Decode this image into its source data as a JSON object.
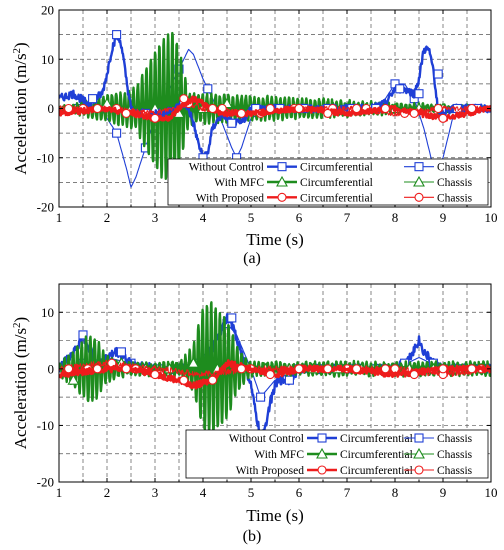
{
  "chart_data": [
    {
      "type": "line",
      "panel_label": "(a)",
      "xlabel": "Time (s)",
      "ylabel": "Acceleration (m/s",
      "ylabel_sup": "2",
      "ylabel_end": ")",
      "xlim": [
        1,
        10
      ],
      "ylim": [
        -20,
        20
      ],
      "x_ticks": [
        1,
        2,
        3,
        4,
        5,
        6,
        7,
        8,
        9,
        10
      ],
      "y_ticks": [
        -20,
        -10,
        0,
        10,
        20
      ],
      "grid": true,
      "legend_position": "bottom-right",
      "legend_rows": [
        {
          "group": "Without Control",
          "circ": "Circumferential",
          "chassis": "Chassis",
          "color": "#1f3fd6"
        },
        {
          "group": "With MFC",
          "circ": "Circumferential",
          "chassis": "Chassis",
          "color": "#1e8c1e"
        },
        {
          "group": "With Proposed",
          "circ": "Circumferential",
          "chassis": "Chassis",
          "color": "#ee1c1c"
        }
      ],
      "series": [
        {
          "legend_group": "Without Control",
          "legend_kind": "Circumferential",
          "color": "#1f3fd6",
          "marker": "square",
          "width": 2.4,
          "style": "noisy",
          "x": [
            1.0,
            1.3,
            1.6,
            1.9,
            2.0,
            2.1,
            2.2,
            2.3,
            2.4,
            2.5,
            2.6,
            2.8,
            3.0,
            3.2,
            3.4,
            3.6,
            3.7,
            3.8,
            3.9,
            4.0,
            4.1,
            4.2,
            4.4,
            4.6,
            4.8,
            5.0,
            5.5,
            6.0,
            6.5,
            7.0,
            7.5,
            7.8,
            8.0,
            8.2,
            8.4,
            8.5,
            8.6,
            8.7,
            8.8,
            8.9,
            9.0,
            9.2,
            9.5,
            9.8,
            10.0
          ],
          "y": [
            2,
            3,
            1,
            3,
            7,
            12,
            15,
            13,
            6,
            0,
            -1,
            -1,
            -1,
            -1,
            0,
            1,
            0,
            -3,
            -7,
            -10,
            -9,
            -4,
            -1,
            -3,
            -3,
            0,
            0,
            0,
            0,
            0,
            0,
            1,
            4,
            4,
            3,
            6,
            12,
            12,
            8,
            -1,
            -1,
            0,
            0,
            0,
            0
          ],
          "markers_x": [
            1.7,
            2.2,
            2.8,
            3.6,
            4.0,
            4.6,
            5.1,
            5.6,
            6.1,
            6.6,
            7.1,
            7.6,
            8.1,
            8.5,
            8.9,
            9.3,
            9.7
          ],
          "markers_y": [
            2,
            15,
            -1,
            1,
            -10,
            -3,
            0,
            0,
            0,
            0,
            0,
            0,
            4,
            3,
            7,
            0,
            0
          ]
        },
        {
          "legend_group": "Without Control",
          "legend_kind": "Chassis",
          "color": "#1f3fd6",
          "marker": "square",
          "width": 1.1,
          "style": "smooth",
          "x": [
            1.0,
            1.4,
            1.8,
            2.0,
            2.2,
            2.4,
            2.5,
            2.6,
            2.8,
            3.0,
            3.2,
            3.4,
            3.6,
            3.7,
            3.8,
            4.0,
            4.2,
            4.4,
            4.6,
            4.7,
            4.8,
            5.0,
            5.4,
            6.0,
            6.5,
            7.0,
            7.5,
            7.8,
            8.0,
            8.2,
            8.4,
            8.6,
            8.8,
            8.9,
            9.0,
            9.2,
            9.5,
            10.0
          ],
          "y": [
            0,
            0,
            1,
            -2,
            -5,
            -12,
            -16,
            -14,
            -8,
            -2,
            2,
            6,
            10,
            12,
            11,
            6,
            2,
            -3,
            -8,
            -10,
            -8,
            -2,
            0,
            0,
            0,
            0,
            0,
            2,
            5,
            5,
            2,
            -4,
            -12,
            -14,
            -10,
            -2,
            0,
            0
          ],
          "markers_x": [
            1.4,
            2.2,
            2.8,
            3.5,
            4.1,
            4.7,
            5.4,
            8.0,
            8.4,
            8.8,
            9.6
          ],
          "markers_y": [
            0,
            -5,
            -8,
            8,
            4,
            -10,
            0,
            5,
            2,
            -12,
            0
          ]
        },
        {
          "legend_group": "With MFC",
          "legend_kind": "Circumferential",
          "color": "#1e8c1e",
          "marker": "triangle",
          "width": 2.4,
          "style": "oscillation",
          "x": [
            1.0,
            2.6,
            2.9,
            3.15,
            3.35,
            3.5,
            3.7,
            10.0
          ],
          "y": [
            0,
            4,
            10,
            14,
            16,
            12,
            3,
            0
          ],
          "period": 0.09
        },
        {
          "legend_group": "With MFC",
          "legend_kind": "Chassis",
          "color": "#1e8c1e",
          "marker": "triangle",
          "width": 1.1,
          "style": "noisy-small",
          "x": [
            1.0,
            3.0,
            3.5,
            4.0,
            10.0
          ],
          "y": [
            0,
            0,
            -1,
            0,
            0
          ],
          "markers_x": [
            1.5,
            2.0,
            2.5,
            3.0,
            3.5,
            4.0,
            4.5,
            5.0,
            5.5,
            6.0,
            6.5,
            7.0,
            7.5,
            8.0,
            8.5,
            9.0,
            9.5
          ],
          "markers_y": [
            0,
            1,
            0,
            0,
            -1,
            0,
            1,
            0,
            0,
            0,
            0,
            0,
            0,
            0,
            0,
            0,
            0
          ]
        },
        {
          "legend_group": "With Proposed",
          "legend_kind": "Circumferential",
          "color": "#ee1c1c",
          "marker": "circle",
          "width": 2.8,
          "style": "noisy-small",
          "x": [
            1.0,
            2.0,
            2.5,
            3.0,
            3.3,
            3.6,
            3.8,
            4.0,
            4.4,
            5.0,
            6.0,
            7.0,
            8.0,
            8.5,
            9.0,
            10.0
          ],
          "y": [
            -1,
            0,
            -1,
            -2,
            -2,
            1,
            2,
            1,
            -1,
            -1,
            0,
            -1,
            0,
            -1,
            -2,
            0
          ],
          "markers_x": [
            1.2,
            1.8,
            2.4,
            3.0,
            3.6,
            4.2,
            4.8,
            5.4,
            6.0,
            6.6,
            7.2,
            7.8,
            8.4,
            9.0,
            9.6
          ],
          "markers_y": [
            0,
            0,
            -1,
            -2,
            2,
            0,
            -1,
            0,
            0,
            -1,
            0,
            0,
            -1,
            -2,
            0
          ]
        },
        {
          "legend_group": "With Proposed",
          "legend_kind": "Chassis",
          "color": "#ee1c1c",
          "marker": "circle",
          "width": 1.1,
          "style": "noisy-small",
          "x": [
            1.0,
            2.0,
            3.0,
            3.7,
            4.0,
            5.0,
            6.0,
            7.0,
            8.0,
            9.0,
            10.0
          ],
          "y": [
            0,
            0,
            -1,
            1,
            0,
            -1,
            0,
            0,
            -1,
            0,
            0
          ],
          "markers_x": [
            1.5,
            2.2,
            3.7,
            4.4,
            5.2,
            5.9,
            6.7,
            7.4,
            8.2,
            8.9,
            9.6
          ],
          "markers_y": [
            0,
            0,
            1,
            0,
            -1,
            0,
            0,
            0,
            -1,
            0,
            0
          ]
        }
      ]
    },
    {
      "type": "line",
      "panel_label": "(b)",
      "xlabel": "Time (s)",
      "ylabel": "Acceleration (m/s",
      "ylabel_sup": "2",
      "ylabel_end": ")",
      "xlim": [
        1,
        10
      ],
      "ylim": [
        -20,
        15
      ],
      "x_ticks": [
        1,
        2,
        3,
        4,
        5,
        6,
        7,
        8,
        9,
        10
      ],
      "y_ticks": [
        -20,
        -10,
        0,
        10
      ],
      "grid": true,
      "legend_position": "bottom-right",
      "legend_rows": [
        {
          "group": "Without Control",
          "circ": "Circumferential",
          "chassis": "Chassis",
          "color": "#1f3fd6"
        },
        {
          "group": "With MFC",
          "circ": "Circumferential",
          "chassis": "Chassis",
          "color": "#1e8c1e"
        },
        {
          "group": "With Proposed",
          "circ": "Circumferential",
          "chassis": "Chassis",
          "color": "#ee1c1c"
        }
      ],
      "series": [
        {
          "legend_group": "Without Control",
          "legend_kind": "Circumferential",
          "color": "#1f3fd6",
          "marker": "square",
          "width": 2.4,
          "style": "noisy",
          "x": [
            1.0,
            1.2,
            1.4,
            1.5,
            1.6,
            1.8,
            2.0,
            2.2,
            2.5,
            3.0,
            3.5,
            4.0,
            4.3,
            4.5,
            4.6,
            4.8,
            5.0,
            5.1,
            5.2,
            5.3,
            5.4,
            5.5,
            5.6,
            5.8,
            6.0,
            6.5,
            7.0,
            7.5,
            8.0,
            8.3,
            8.5,
            8.6,
            8.8,
            9.0,
            9.5,
            10.0
          ],
          "y": [
            0,
            2,
            4,
            6,
            4,
            1,
            2,
            3,
            1,
            0,
            0,
            1,
            5,
            9,
            8,
            3,
            -3,
            -8,
            -12,
            -10,
            -6,
            -3,
            -2,
            -2,
            0,
            0,
            0,
            0,
            0,
            2,
            5,
            3,
            1,
            0,
            0,
            0
          ],
          "markers_x": [
            1.5,
            2.3,
            3.1,
            3.9,
            4.6,
            5.2,
            5.8,
            6.4,
            7.0,
            7.6,
            8.2,
            8.8,
            9.4
          ],
          "markers_y": [
            6,
            3,
            0,
            1,
            9,
            -12,
            -2,
            0,
            0,
            0,
            1,
            1,
            0
          ]
        },
        {
          "legend_group": "Without Control",
          "legend_kind": "Chassis",
          "color": "#1f3fd6",
          "marker": "square",
          "width": 1.1,
          "style": "smooth",
          "x": [
            1.0,
            1.5,
            2.0,
            2.5,
            3.0,
            3.5,
            4.0,
            4.3,
            4.5,
            4.7,
            5.0,
            5.2,
            5.5,
            6.0,
            7.0,
            8.0,
            8.5,
            9.0,
            10.0
          ],
          "y": [
            0,
            1,
            2,
            1,
            0,
            0,
            2,
            6,
            8,
            6,
            0,
            -5,
            -2,
            0,
            0,
            0,
            2,
            0,
            0
          ],
          "markers_x": [
            1.5,
            2.5,
            3.5,
            4.5,
            5.2,
            6.0,
            7.0,
            8.0,
            9.0
          ],
          "markers_y": [
            1,
            1,
            0,
            8,
            -5,
            0,
            0,
            0,
            0
          ]
        },
        {
          "legend_group": "With MFC",
          "legend_kind": "Circumferential",
          "color": "#1e8c1e",
          "marker": "triangle",
          "width": 2.4,
          "style": "oscillation",
          "x": [
            1.0,
            1.3,
            1.6,
            1.8,
            2.0,
            2.5,
            3.5,
            3.8,
            4.0,
            4.2,
            4.35,
            4.5,
            4.7,
            5.0,
            10.0
          ],
          "y": [
            1,
            3,
            6,
            5,
            2,
            1,
            1,
            4,
            11,
            12,
            10,
            9,
            4,
            1,
            1
          ],
          "period": 0.09
        },
        {
          "legend_group": "With MFC",
          "legend_kind": "Chassis",
          "color": "#1e8c1e",
          "marker": "triangle",
          "width": 1.1,
          "style": "noisy-small",
          "x": [
            1.0,
            2.0,
            3.0,
            4.0,
            5.0,
            10.0
          ],
          "y": [
            0,
            1,
            0,
            1,
            0,
            0
          ],
          "markers_x": [
            1.3,
            1.8,
            2.3,
            2.8,
            3.3,
            3.8,
            4.3,
            4.8,
            5.3,
            5.8,
            6.3,
            6.8,
            7.3,
            7.8,
            8.3,
            8.8,
            9.3,
            9.8
          ],
          "markers_y": [
            -2,
            0,
            1,
            0,
            0,
            1,
            0,
            0,
            0,
            0,
            0,
            0,
            0,
            0,
            0,
            0,
            0,
            0
          ]
        },
        {
          "legend_group": "With Proposed",
          "legend_kind": "Circumferential",
          "color": "#ee1c1c",
          "marker": "circle",
          "width": 2.8,
          "style": "noisy-small",
          "x": [
            1.0,
            2.0,
            2.5,
            3.0,
            3.5,
            3.8,
            4.2,
            4.5,
            5.0,
            5.5,
            6.0,
            7.0,
            8.0,
            9.0,
            10.0
          ],
          "y": [
            -1,
            0,
            0,
            -1,
            -2,
            -3,
            -2,
            1,
            0,
            -1,
            0,
            0,
            -1,
            0,
            0
          ],
          "markers_x": [
            1.2,
            1.8,
            2.4,
            3.0,
            3.6,
            4.2,
            4.8,
            5.4,
            6.0,
            6.6,
            7.2,
            7.8,
            8.4,
            9.0,
            9.6
          ],
          "markers_y": [
            0,
            0,
            0,
            -1,
            -2,
            -2,
            0,
            -1,
            0,
            0,
            0,
            0,
            -1,
            0,
            0
          ]
        },
        {
          "legend_group": "With Proposed",
          "legend_kind": "Chassis",
          "color": "#ee1c1c",
          "marker": "circle",
          "width": 1.1,
          "style": "noisy-small",
          "x": [
            1.0,
            2.0,
            3.0,
            4.0,
            5.0,
            6.0,
            7.0,
            8.0,
            9.0,
            10.0
          ],
          "y": [
            0,
            1,
            0,
            -1,
            0,
            0,
            0,
            0,
            -1,
            0
          ],
          "markers_x": [
            1.6,
            2.1,
            2.6,
            3.1,
            5.0,
            6.0,
            7.0,
            8.0,
            9.0,
            9.8
          ],
          "markers_y": [
            0,
            1,
            0,
            -1,
            0,
            0,
            0,
            0,
            -1,
            0
          ]
        }
      ]
    }
  ]
}
